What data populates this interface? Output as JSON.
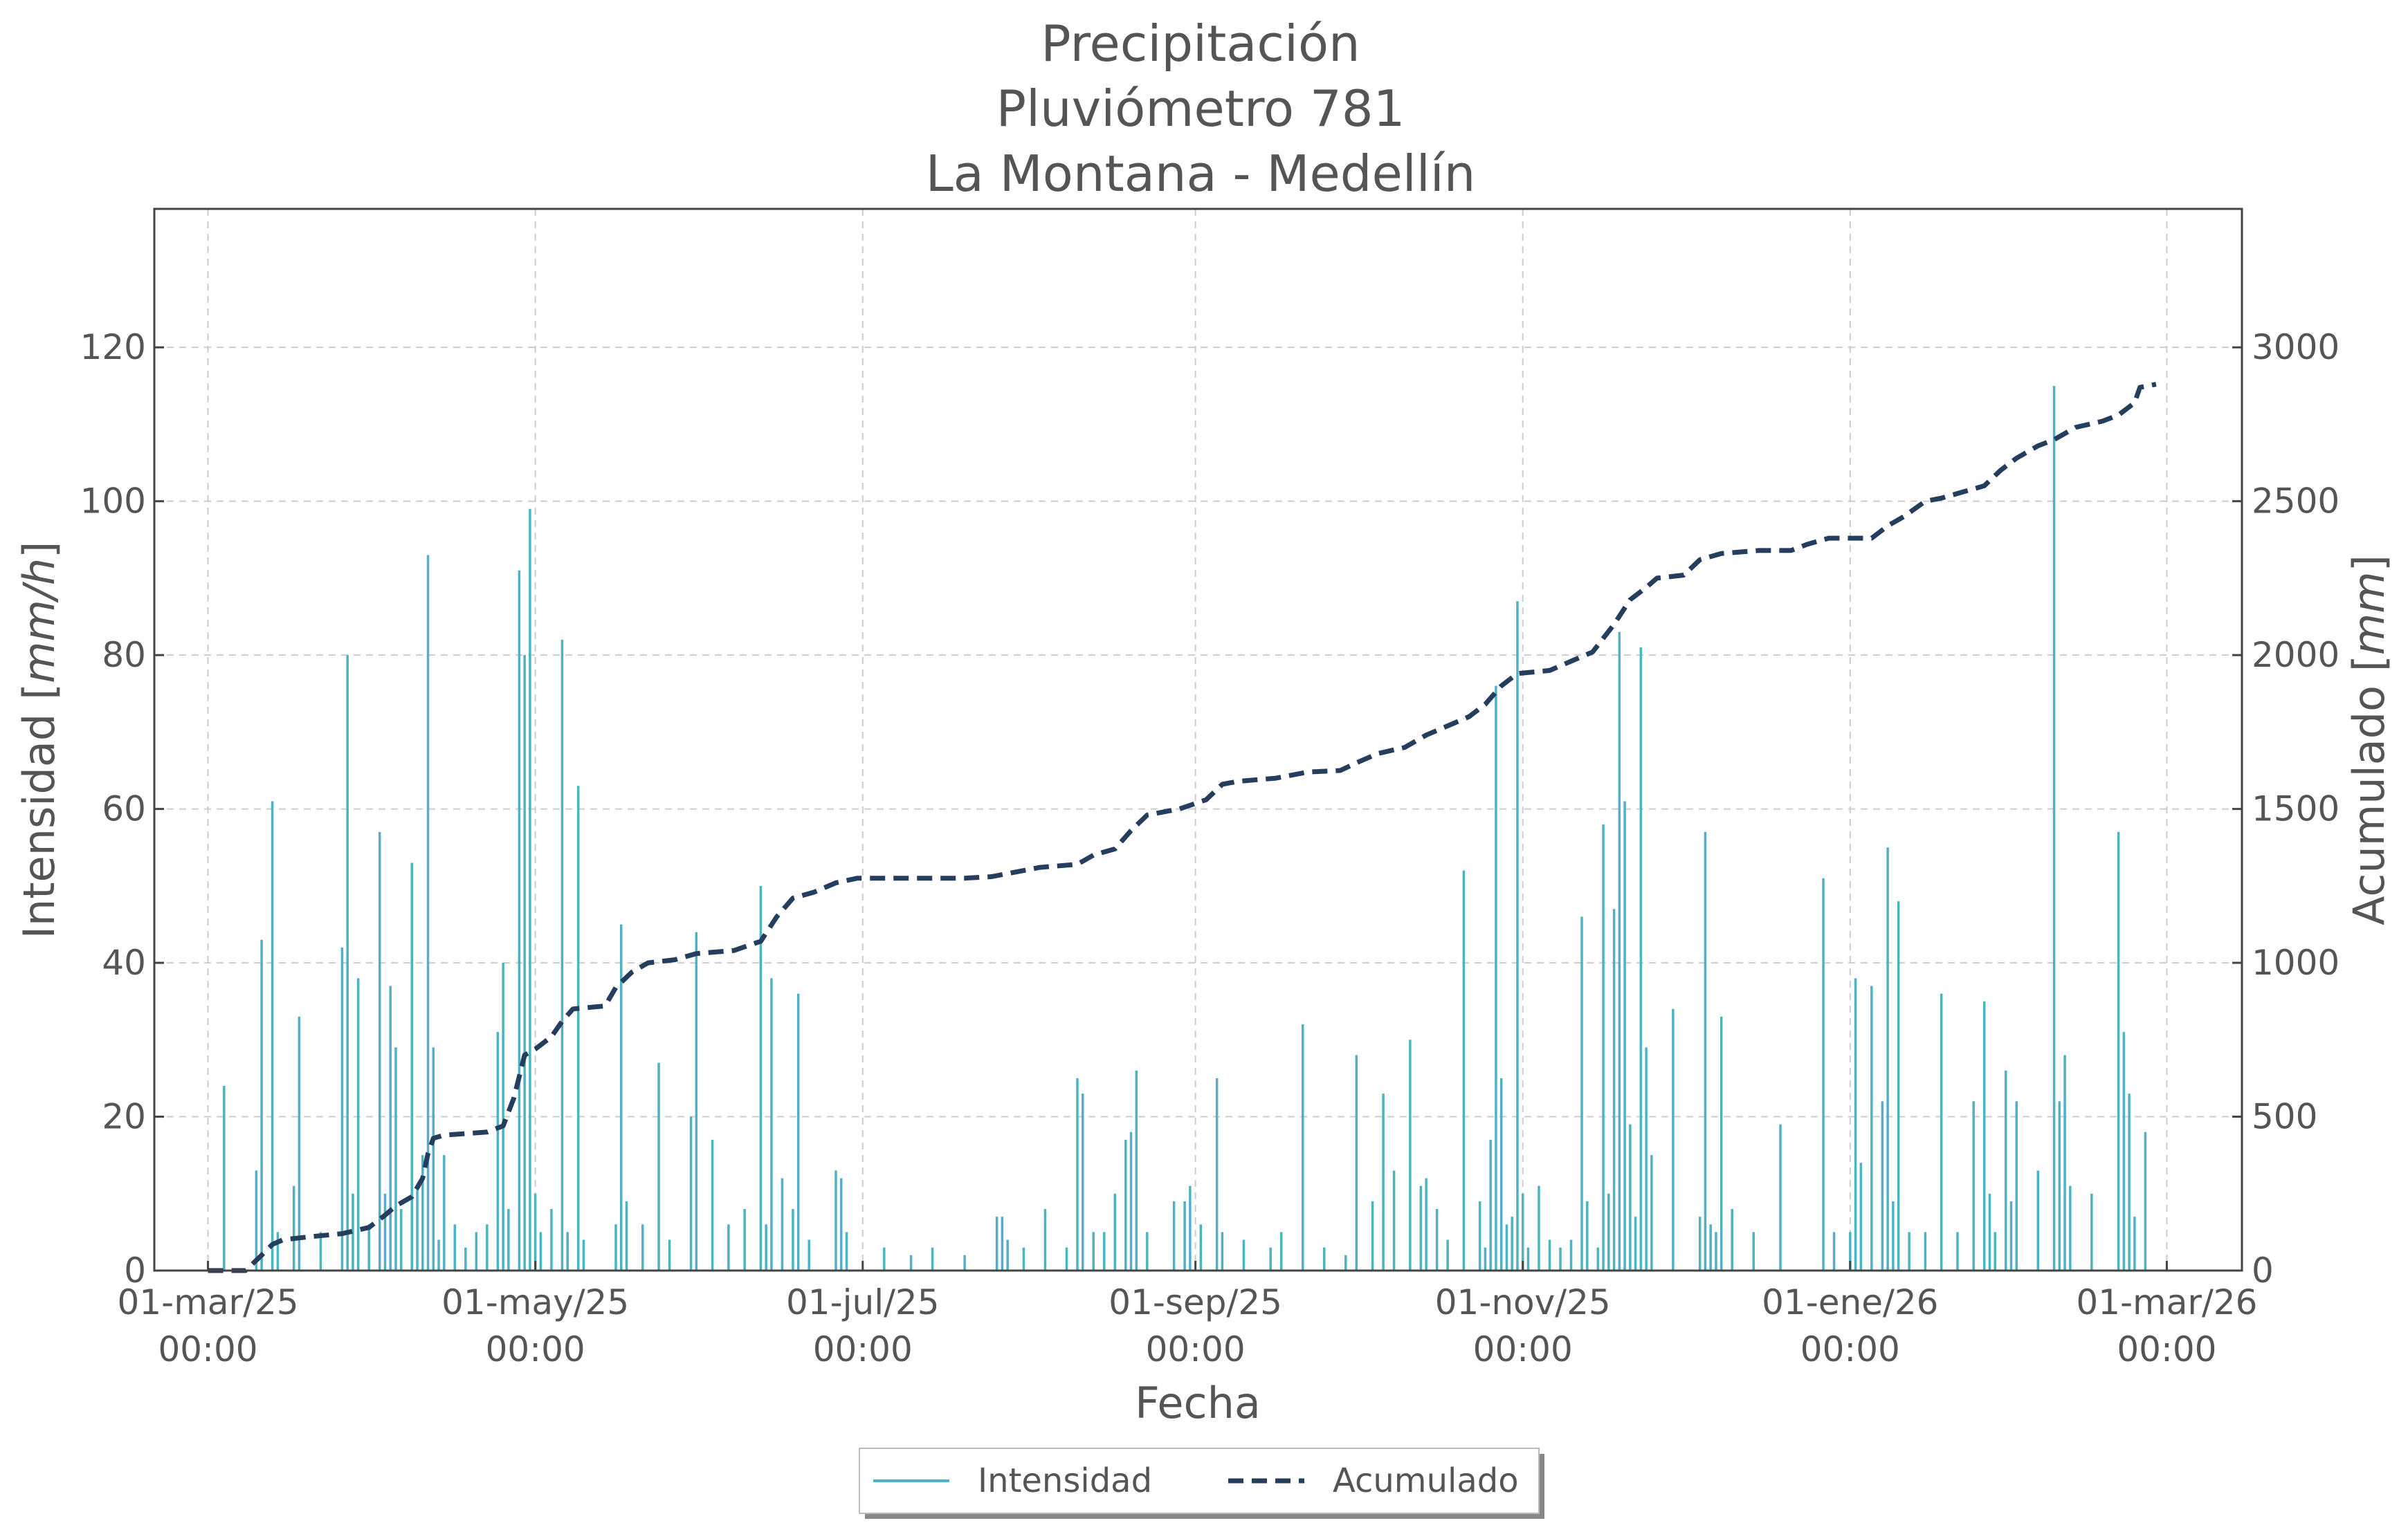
{
  "chart_data": {
    "type": "bar+line",
    "title": [
      "Precipitación",
      "Pluviómetro 781",
      "La Montana - Medellín"
    ],
    "xlabel": "Fecha",
    "ylabel_left": {
      "text": "Intensidad",
      "unit": "mm/h"
    },
    "ylabel_right": {
      "text": "Acumulado",
      "unit": "mm"
    },
    "x_range": [
      "2025-02-19",
      "2026-03-15"
    ],
    "ylim_left": [
      0,
      138
    ],
    "ylim_right": [
      0,
      3450
    ],
    "grid": true,
    "legend_position": "bottom-center",
    "x_ticks": [
      {
        "date": "2025-03-01",
        "line1": "01-mar/25",
        "line2": "00:00"
      },
      {
        "date": "2025-05-01",
        "line1": "01-may/25",
        "line2": "00:00"
      },
      {
        "date": "2025-07-01",
        "line1": "01-jul/25",
        "line2": "00:00"
      },
      {
        "date": "2025-09-01",
        "line1": "01-sep/25",
        "line2": "00:00"
      },
      {
        "date": "2025-11-01",
        "line1": "01-nov/25",
        "line2": "00:00"
      },
      {
        "date": "2026-01-01",
        "line1": "01-ene/26",
        "line2": "00:00"
      },
      {
        "date": "2026-03-01",
        "line1": "01-mar/26",
        "line2": "00:00"
      }
    ],
    "y_ticks_left": [
      0,
      20,
      40,
      60,
      80,
      100,
      120
    ],
    "y_ticks_right": [
      0,
      500,
      1000,
      1500,
      2000,
      2500,
      3000
    ],
    "series": [
      {
        "name": "Intensidad",
        "kind": "spikes",
        "color": "#4db3c2",
        "points": [
          [
            "2025-03-04",
            24
          ],
          [
            "2025-03-10",
            13
          ],
          [
            "2025-03-11",
            43
          ],
          [
            "2025-03-13",
            61
          ],
          [
            "2025-03-14",
            5
          ],
          [
            "2025-03-17",
            11
          ],
          [
            "2025-03-18",
            33
          ],
          [
            "2025-03-22",
            5
          ],
          [
            "2025-03-26",
            42
          ],
          [
            "2025-03-27",
            80
          ],
          [
            "2025-03-28",
            10
          ],
          [
            "2025-03-29",
            38
          ],
          [
            "2025-03-31",
            6
          ],
          [
            "2025-04-02",
            57
          ],
          [
            "2025-04-03",
            10
          ],
          [
            "2025-04-04",
            37
          ],
          [
            "2025-04-05",
            29
          ],
          [
            "2025-04-06",
            8
          ],
          [
            "2025-04-08",
            53
          ],
          [
            "2025-04-09",
            11
          ],
          [
            "2025-04-10",
            15
          ],
          [
            "2025-04-11",
            93
          ],
          [
            "2025-04-12",
            29
          ],
          [
            "2025-04-13",
            4
          ],
          [
            "2025-04-14",
            15
          ],
          [
            "2025-04-16",
            6
          ],
          [
            "2025-04-18",
            3
          ],
          [
            "2025-04-20",
            5
          ],
          [
            "2025-04-22",
            6
          ],
          [
            "2025-04-24",
            31
          ],
          [
            "2025-04-25",
            40
          ],
          [
            "2025-04-26",
            8
          ],
          [
            "2025-04-28",
            91
          ],
          [
            "2025-04-29",
            80
          ],
          [
            "2025-04-30",
            99
          ],
          [
            "2025-05-01",
            10
          ],
          [
            "2025-05-02",
            5
          ],
          [
            "2025-05-04",
            8
          ],
          [
            "2025-05-06",
            82
          ],
          [
            "2025-05-07",
            5
          ],
          [
            "2025-05-09",
            63
          ],
          [
            "2025-05-10",
            4
          ],
          [
            "2025-05-16",
            6
          ],
          [
            "2025-05-17",
            45
          ],
          [
            "2025-05-18",
            9
          ],
          [
            "2025-05-21",
            6
          ],
          [
            "2025-05-24",
            27
          ],
          [
            "2025-05-26",
            4
          ],
          [
            "2025-05-30",
            20
          ],
          [
            "2025-05-31",
            44
          ],
          [
            "2025-06-03",
            17
          ],
          [
            "2025-06-06",
            6
          ],
          [
            "2025-06-09",
            8
          ],
          [
            "2025-06-12",
            50
          ],
          [
            "2025-06-13",
            6
          ],
          [
            "2025-06-14",
            38
          ],
          [
            "2025-06-16",
            12
          ],
          [
            "2025-06-18",
            8
          ],
          [
            "2025-06-19",
            36
          ],
          [
            "2025-06-21",
            4
          ],
          [
            "2025-06-26",
            13
          ],
          [
            "2025-06-27",
            12
          ],
          [
            "2025-06-28",
            5
          ],
          [
            "2025-07-05",
            3
          ],
          [
            "2025-07-10",
            2
          ],
          [
            "2025-07-14",
            3
          ],
          [
            "2025-07-20",
            2
          ],
          [
            "2025-07-26",
            7
          ],
          [
            "2025-07-27",
            7
          ],
          [
            "2025-07-28",
            4
          ],
          [
            "2025-07-31",
            3
          ],
          [
            "2025-08-04",
            8
          ],
          [
            "2025-08-08",
            3
          ],
          [
            "2025-08-10",
            25
          ],
          [
            "2025-08-11",
            23
          ],
          [
            "2025-08-13",
            5
          ],
          [
            "2025-08-15",
            5
          ],
          [
            "2025-08-17",
            10
          ],
          [
            "2025-08-19",
            17
          ],
          [
            "2025-08-20",
            18
          ],
          [
            "2025-08-21",
            26
          ],
          [
            "2025-08-23",
            5
          ],
          [
            "2025-08-28",
            9
          ],
          [
            "2025-08-30",
            9
          ],
          [
            "2025-08-31",
            11
          ],
          [
            "2025-09-02",
            6
          ],
          [
            "2025-09-05",
            25
          ],
          [
            "2025-09-06",
            5
          ],
          [
            "2025-09-10",
            4
          ],
          [
            "2025-09-15",
            3
          ],
          [
            "2025-09-17",
            5
          ],
          [
            "2025-09-21",
            32
          ],
          [
            "2025-09-25",
            3
          ],
          [
            "2025-09-29",
            2
          ],
          [
            "2025-10-01",
            28
          ],
          [
            "2025-10-04",
            9
          ],
          [
            "2025-10-06",
            23
          ],
          [
            "2025-10-08",
            13
          ],
          [
            "2025-10-11",
            30
          ],
          [
            "2025-10-13",
            11
          ],
          [
            "2025-10-14",
            12
          ],
          [
            "2025-10-16",
            8
          ],
          [
            "2025-10-18",
            4
          ],
          [
            "2025-10-21",
            52
          ],
          [
            "2025-10-24",
            9
          ],
          [
            "2025-10-25",
            3
          ],
          [
            "2025-10-26",
            17
          ],
          [
            "2025-10-27",
            76
          ],
          [
            "2025-10-28",
            25
          ],
          [
            "2025-10-29",
            6
          ],
          [
            "2025-10-30",
            7
          ],
          [
            "2025-10-31",
            87
          ],
          [
            "2025-11-01",
            10
          ],
          [
            "2025-11-02",
            3
          ],
          [
            "2025-11-04",
            11
          ],
          [
            "2025-11-06",
            4
          ],
          [
            "2025-11-08",
            3
          ],
          [
            "2025-11-10",
            4
          ],
          [
            "2025-11-12",
            46
          ],
          [
            "2025-11-13",
            9
          ],
          [
            "2025-11-15",
            3
          ],
          [
            "2025-11-16",
            58
          ],
          [
            "2025-11-17",
            10
          ],
          [
            "2025-11-18",
            47
          ],
          [
            "2025-11-19",
            83
          ],
          [
            "2025-11-20",
            61
          ],
          [
            "2025-11-21",
            19
          ],
          [
            "2025-11-22",
            7
          ],
          [
            "2025-11-23",
            81
          ],
          [
            "2025-11-24",
            29
          ],
          [
            "2025-11-25",
            15
          ],
          [
            "2025-11-29",
            34
          ],
          [
            "2025-12-04",
            7
          ],
          [
            "2025-12-05",
            57
          ],
          [
            "2025-12-06",
            6
          ],
          [
            "2025-12-07",
            5
          ],
          [
            "2025-12-08",
            33
          ],
          [
            "2025-12-10",
            8
          ],
          [
            "2025-12-14",
            5
          ],
          [
            "2025-12-19",
            19
          ],
          [
            "2025-12-27",
            51
          ],
          [
            "2025-12-29",
            5
          ],
          [
            "2026-01-01",
            5
          ],
          [
            "2026-01-02",
            38
          ],
          [
            "2026-01-03",
            14
          ],
          [
            "2026-01-05",
            37
          ],
          [
            "2026-01-07",
            22
          ],
          [
            "2026-01-08",
            55
          ],
          [
            "2026-01-09",
            9
          ],
          [
            "2026-01-10",
            48
          ],
          [
            "2026-01-12",
            5
          ],
          [
            "2026-01-15",
            5
          ],
          [
            "2026-01-18",
            36
          ],
          [
            "2026-01-21",
            5
          ],
          [
            "2026-01-24",
            22
          ],
          [
            "2026-01-26",
            35
          ],
          [
            "2026-01-27",
            10
          ],
          [
            "2026-01-28",
            5
          ],
          [
            "2026-01-30",
            26
          ],
          [
            "2026-01-31",
            9
          ],
          [
            "2026-02-01",
            22
          ],
          [
            "2026-02-05",
            13
          ],
          [
            "2026-02-08",
            115
          ],
          [
            "2026-02-09",
            22
          ],
          [
            "2026-02-10",
            28
          ],
          [
            "2026-02-11",
            11
          ],
          [
            "2026-02-15",
            10
          ],
          [
            "2026-02-20",
            57
          ],
          [
            "2026-02-21",
            31
          ],
          [
            "2026-02-22",
            23
          ],
          [
            "2026-02-23",
            7
          ],
          [
            "2026-02-25",
            18
          ]
        ]
      },
      {
        "name": "Acumulado",
        "kind": "line",
        "style": "dashed",
        "color": "#253e5e",
        "points": [
          [
            "2025-03-01",
            0
          ],
          [
            "2025-03-08",
            0
          ],
          [
            "2025-03-11",
            50
          ],
          [
            "2025-03-13",
            85
          ],
          [
            "2025-03-15",
            100
          ],
          [
            "2025-03-20",
            110
          ],
          [
            "2025-03-26",
            120
          ],
          [
            "2025-03-31",
            140
          ],
          [
            "2025-04-03",
            180
          ],
          [
            "2025-04-05",
            210
          ],
          [
            "2025-04-08",
            240
          ],
          [
            "2025-04-10",
            300
          ],
          [
            "2025-04-11",
            380
          ],
          [
            "2025-04-12",
            430
          ],
          [
            "2025-04-14",
            440
          ],
          [
            "2025-04-22",
            450
          ],
          [
            "2025-04-25",
            470
          ],
          [
            "2025-04-27",
            560
          ],
          [
            "2025-04-29",
            700
          ],
          [
            "2025-05-01",
            720
          ],
          [
            "2025-05-04",
            760
          ],
          [
            "2025-05-06",
            810
          ],
          [
            "2025-05-08",
            850
          ],
          [
            "2025-05-14",
            860
          ],
          [
            "2025-05-16",
            920
          ],
          [
            "2025-05-19",
            970
          ],
          [
            "2025-05-22",
            1000
          ],
          [
            "2025-05-27",
            1010
          ],
          [
            "2025-05-31",
            1030
          ],
          [
            "2025-06-07",
            1040
          ],
          [
            "2025-06-12",
            1070
          ],
          [
            "2025-06-15",
            1150
          ],
          [
            "2025-06-18",
            1210
          ],
          [
            "2025-06-22",
            1230
          ],
          [
            "2025-06-26",
            1260
          ],
          [
            "2025-06-30",
            1275
          ],
          [
            "2025-07-20",
            1275
          ],
          [
            "2025-07-25",
            1280
          ],
          [
            "2025-07-28",
            1290
          ],
          [
            "2025-08-03",
            1310
          ],
          [
            "2025-08-10",
            1320
          ],
          [
            "2025-08-13",
            1350
          ],
          [
            "2025-08-17",
            1370
          ],
          [
            "2025-08-20",
            1430
          ],
          [
            "2025-08-23",
            1480
          ],
          [
            "2025-08-29",
            1500
          ],
          [
            "2025-09-03",
            1530
          ],
          [
            "2025-09-06",
            1580
          ],
          [
            "2025-09-09",
            1590
          ],
          [
            "2025-09-16",
            1600
          ],
          [
            "2025-09-22",
            1620
          ],
          [
            "2025-09-28",
            1625
          ],
          [
            "2025-10-01",
            1650
          ],
          [
            "2025-10-05",
            1680
          ],
          [
            "2025-10-10",
            1700
          ],
          [
            "2025-10-14",
            1740
          ],
          [
            "2025-10-18",
            1770
          ],
          [
            "2025-10-22",
            1800
          ],
          [
            "2025-10-25",
            1840
          ],
          [
            "2025-10-28",
            1900
          ],
          [
            "2025-10-31",
            1940
          ],
          [
            "2025-11-06",
            1950
          ],
          [
            "2025-11-10",
            1980
          ],
          [
            "2025-11-14",
            2010
          ],
          [
            "2025-11-18",
            2100
          ],
          [
            "2025-11-21",
            2180
          ],
          [
            "2025-11-24",
            2220
          ],
          [
            "2025-11-26",
            2250
          ],
          [
            "2025-12-01",
            2260
          ],
          [
            "2025-12-04",
            2310
          ],
          [
            "2025-12-08",
            2330
          ],
          [
            "2025-12-15",
            2340
          ],
          [
            "2025-12-21",
            2340
          ],
          [
            "2025-12-24",
            2360
          ],
          [
            "2025-12-28",
            2380
          ],
          [
            "2026-01-05",
            2380
          ],
          [
            "2026-01-08",
            2420
          ],
          [
            "2026-01-11",
            2450
          ],
          [
            "2026-01-15",
            2500
          ],
          [
            "2026-01-18",
            2510
          ],
          [
            "2026-01-22",
            2530
          ],
          [
            "2026-01-26",
            2550
          ],
          [
            "2026-01-29",
            2600
          ],
          [
            "2026-02-01",
            2640
          ],
          [
            "2026-02-05",
            2680
          ],
          [
            "2026-02-08",
            2700
          ],
          [
            "2026-02-12",
            2740
          ],
          [
            "2026-02-17",
            2760
          ],
          [
            "2026-02-20",
            2780
          ],
          [
            "2026-02-23",
            2820
          ],
          [
            "2026-02-24",
            2870
          ],
          [
            "2026-02-27",
            2880
          ]
        ]
      }
    ],
    "legend": [
      {
        "label": "Intensidad",
        "style": "solid",
        "color": "#4db3c2"
      },
      {
        "label": "Acumulado",
        "style": "dashed",
        "color": "#253e5e"
      }
    ]
  }
}
